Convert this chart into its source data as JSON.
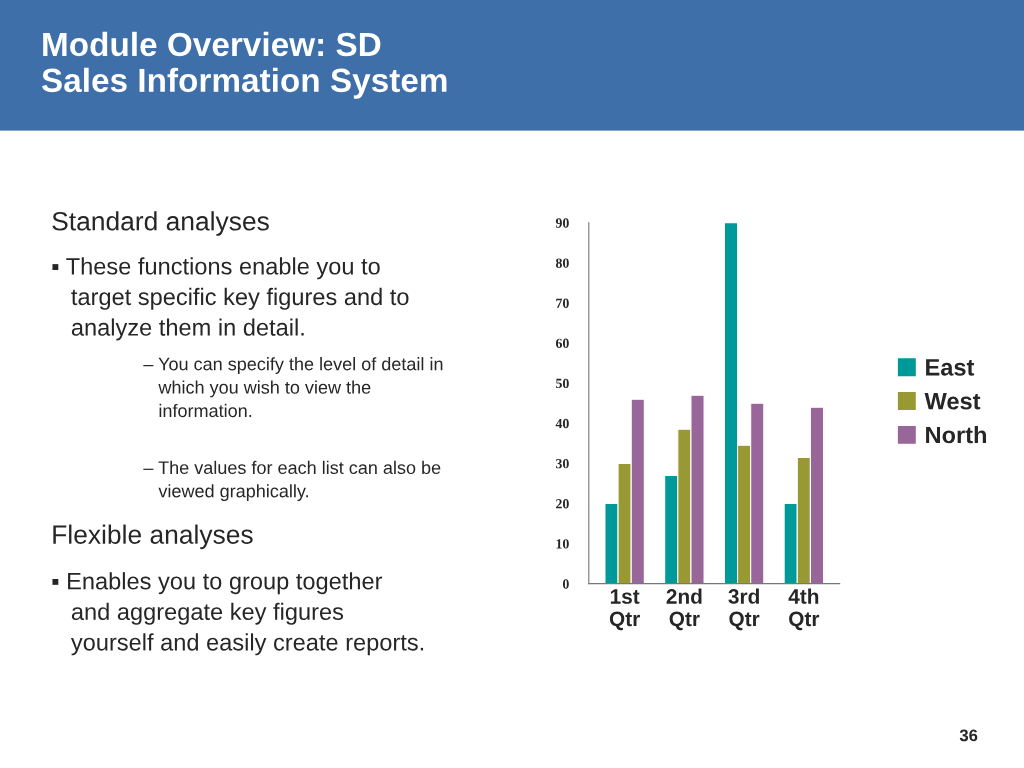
{
  "chart_data": {
    "type": "bar",
    "title": "Module Overview: SD\nSales Information System",
    "categories": [
      "1st Qtr",
      "2nd Qtr",
      "3rd Qtr",
      "4th Qtr"
    ],
    "series": [
      {
        "name": "East",
        "color": "#009999",
        "values": [
          20,
          27,
          90,
          20
        ]
      },
      {
        "name": "West",
        "color": "#999933",
        "values": [
          30,
          38.5,
          34.5,
          31.5
        ]
      },
      {
        "name": "North",
        "color": "#996699",
        "values": [
          46,
          47,
          45,
          44
        ]
      }
    ],
    "ylim": [
      0,
      90
    ],
    "yticks": [
      0,
      10,
      20,
      30,
      40,
      50,
      60,
      70,
      80,
      90
    ],
    "grid": false,
    "legend": "right",
    "annotations": [
      "Standard analyses",
      "▪ These functions enable you to\n   target specific key figures and to\n   analyze them in detail.",
      "– You can specify the level of detail in\n   which you wish to view the\n   information.",
      "– The values for each list can also be\n   viewed graphically.",
      "Flexible analyses",
      "▪ Enables you to group together\n   and aggregate key figures\n   yourself and easily create reports.",
      "36"
    ]
  }
}
